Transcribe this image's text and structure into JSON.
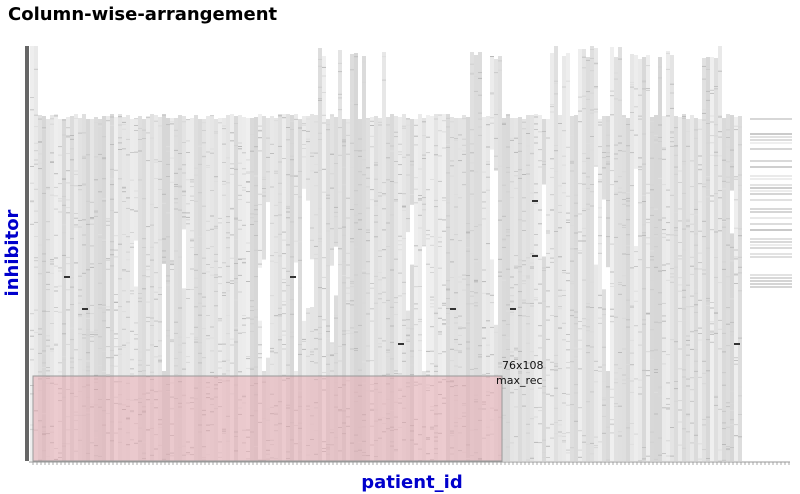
{
  "chart_data": {
    "type": "heatmap",
    "title": "Column-wise-arrangement",
    "xlabel": "patient_id",
    "ylabel": "inhibitor",
    "grid": false,
    "legend": "none",
    "highlight": {
      "size_label": "76x108",
      "name_label": "max_rec",
      "color": "#e8a0a8"
    },
    "colors": {
      "cell_light": "#e6e6e6",
      "cell_mid": "#d4d4d4",
      "cell_dark": "#333333",
      "axis": "#666666",
      "label": "#0000cc"
    }
  }
}
